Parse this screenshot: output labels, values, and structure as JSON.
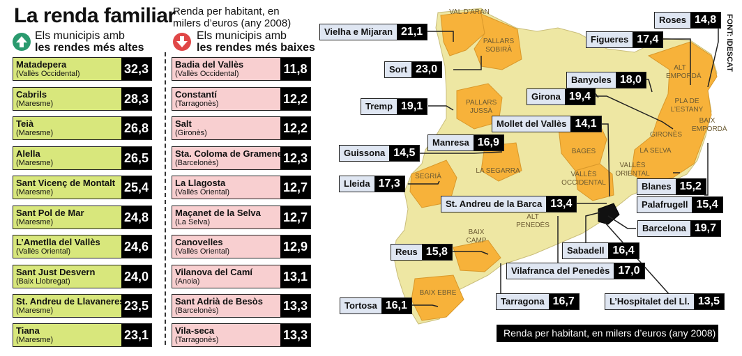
{
  "title": "La renda familiar",
  "subtitle": "Renda per habitant, en milers d’euros (any 2008)",
  "high_heading": {
    "line1": "Els municipis amb",
    "line2": "les rendes més altes"
  },
  "low_heading": {
    "line1": "Els municipis amb",
    "line2": "les rendes més baixes"
  },
  "source": "FONT: IDESCAT",
  "legend": "Renda per habitant, en milers d’euros (any 2008)",
  "colors": {
    "high_row": "#d8e77c",
    "low_row": "#f8cfd0",
    "map_base": "#eee7a3",
    "map_highlight": "#f7b23a",
    "callout": "#dfe6f2"
  },
  "chart_data": [
    {
      "type": "table",
      "title": "Els municipis amb les rendes més altes",
      "rows": [
        {
          "name": "Matadepera",
          "region": "(Vallès Occidental)",
          "value": "32,3"
        },
        {
          "name": "Cabrils",
          "region": "(Maresme)",
          "value": "28,3"
        },
        {
          "name": "Teià",
          "region": "(Maresme)",
          "value": "26,8"
        },
        {
          "name": "Alella",
          "region": "(Maresme)",
          "value": "26,5"
        },
        {
          "name": "Sant Vicenç de Montalt",
          "region": "(Maresme)",
          "value": "25,4"
        },
        {
          "name": "Sant Pol de Mar",
          "region": "(Maresme)",
          "value": "24,8"
        },
        {
          "name": "L’Ametlla del Vallès",
          "region": "(Vallès Oriental)",
          "value": "24,6"
        },
        {
          "name": "Sant Just Desvern",
          "region": "(Baix Llobregat)",
          "value": "24,0"
        },
        {
          "name": "St. Andreu de Llavaneres",
          "region": "(Maresme)",
          "value": "23,5"
        },
        {
          "name": "Tiana",
          "region": "(Maresme)",
          "value": "23,1"
        }
      ]
    },
    {
      "type": "table",
      "title": "Els municipis amb les rendes més baixes",
      "rows": [
        {
          "name": "Badia del Vallès",
          "region": "(Vallès Occidental)",
          "value": "11,8"
        },
        {
          "name": "Constantí",
          "region": "(Tarragonès)",
          "value": "12,2"
        },
        {
          "name": "Salt",
          "region": "(Gironès)",
          "value": "12,2"
        },
        {
          "name": "Sta. Coloma de Gramenet",
          "region": "(Barcelonès)",
          "value": "12,3"
        },
        {
          "name": "La Llagosta",
          "region": "(Vallès Oriental)",
          "value": "12,7"
        },
        {
          "name": "Maçanet de la Selva",
          "region": "(La Selva)",
          "value": "12,7"
        },
        {
          "name": "Canovelles",
          "region": "(Vallès Oriental)",
          "value": "12,9"
        },
        {
          "name": "Vilanova del Camí",
          "region": "(Anoia)",
          "value": "13,1"
        },
        {
          "name": "Sant Adrià de Besòs",
          "region": "(Barcelonès)",
          "value": "13,3"
        },
        {
          "name": "Vila-seca",
          "region": "(Tarragonès)",
          "value": "13,3"
        }
      ]
    },
    {
      "type": "map",
      "title": "Renda per habitant, en milers d’euros (any 2008)",
      "capitals": [
        {
          "name": "Vielha e Mijaran",
          "value": "21,1"
        },
        {
          "name": "Sort",
          "value": "23,0"
        },
        {
          "name": "Tremp",
          "value": "19,1"
        },
        {
          "name": "Guissona",
          "value": "14,5"
        },
        {
          "name": "Lleida",
          "value": "17,3"
        },
        {
          "name": "Manresa",
          "value": "16,9"
        },
        {
          "name": "Mollet del Vallès",
          "value": "14,1"
        },
        {
          "name": "Girona",
          "value": "19,4"
        },
        {
          "name": "Banyoles",
          "value": "18,0"
        },
        {
          "name": "Figueres",
          "value": "17,4"
        },
        {
          "name": "Roses",
          "value": "14,8"
        },
        {
          "name": "Blanes",
          "value": "15,2"
        },
        {
          "name": "Palafrugell",
          "value": "15,4"
        },
        {
          "name": "St. Andreu de la Barca",
          "value": "13,4"
        },
        {
          "name": "Barcelona",
          "value": "19,7"
        },
        {
          "name": "Sabadell",
          "value": "16,4"
        },
        {
          "name": "Vilafranca del Penedès",
          "value": "17,0"
        },
        {
          "name": "L’Hospitalet del Ll.",
          "value": "13,5"
        },
        {
          "name": "Reus",
          "value": "15,8"
        },
        {
          "name": "Tarragona",
          "value": "16,7"
        },
        {
          "name": "Tortosa",
          "value": "16,1"
        }
      ],
      "comarques": [
        "VAL D’ARAN",
        "PALLARS SOBIRÀ",
        "PALLARS JUSSÀ",
        "ALT EMPORDÀ",
        "PLA DE L’ESTANY",
        "BAIX EMPORDÀ",
        "GIRONÈS",
        "LA SELVA",
        "BAGES",
        "VALLÈS OCCIDENTAL",
        "VALLÈS ORIENTAL",
        "LA SEGARRA",
        "SEGRIÀ",
        "ALT PENEDÈS",
        "BAIX CAMP",
        "BAIX EBRE"
      ]
    }
  ]
}
